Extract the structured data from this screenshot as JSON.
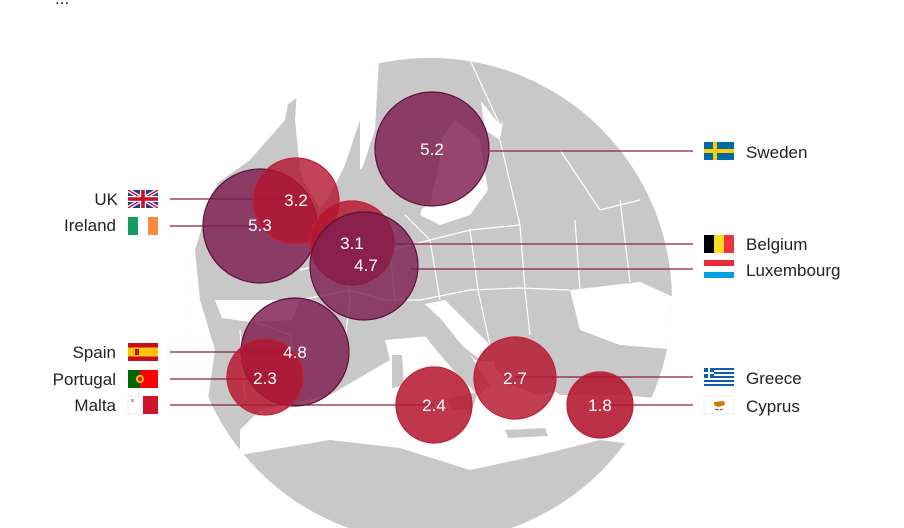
{
  "top_text_fragment": "...",
  "countries": [
    {
      "id": "sweden",
      "name": "Sweden",
      "value": "5.2",
      "group": "purple",
      "flag": "sweden-flag"
    },
    {
      "id": "uk",
      "name": "UK",
      "value": "3.2",
      "group": "red",
      "flag": "uk-flag"
    },
    {
      "id": "ireland",
      "name": "Ireland",
      "value": "5.3",
      "group": "purple",
      "flag": "ireland-flag"
    },
    {
      "id": "belgium",
      "name": "Belgium",
      "value": "3.1",
      "group": "red",
      "flag": "belgium-flag"
    },
    {
      "id": "luxembourg",
      "name": "Luxembourg",
      "value": "4.7",
      "group": "purple",
      "flag": "luxembourg-flag"
    },
    {
      "id": "spain",
      "name": "Spain",
      "value": "4.8",
      "group": "purple",
      "flag": "spain-flag"
    },
    {
      "id": "portugal",
      "name": "Portugal",
      "value": "2.3",
      "group": "red",
      "flag": "portugal-flag"
    },
    {
      "id": "malta",
      "name": "Malta",
      "value": "2.4",
      "group": "red",
      "flag": "malta-flag"
    },
    {
      "id": "greece",
      "name": "Greece",
      "value": "2.7",
      "group": "red",
      "flag": "greece-flag"
    },
    {
      "id": "cyprus",
      "name": "Cyprus",
      "value": "1.8",
      "group": "red",
      "flag": "cyprus-flag"
    }
  ],
  "colors": {
    "purple_fill": "#7d1d4e",
    "purple_stroke": "#5e0f38",
    "red_fill": "#b3142d",
    "red_stroke": "#c41f37",
    "leader_line": "#8a1f45",
    "land": "#c8c8c8",
    "sea": "#ffffff",
    "border": "#ffffff"
  }
}
